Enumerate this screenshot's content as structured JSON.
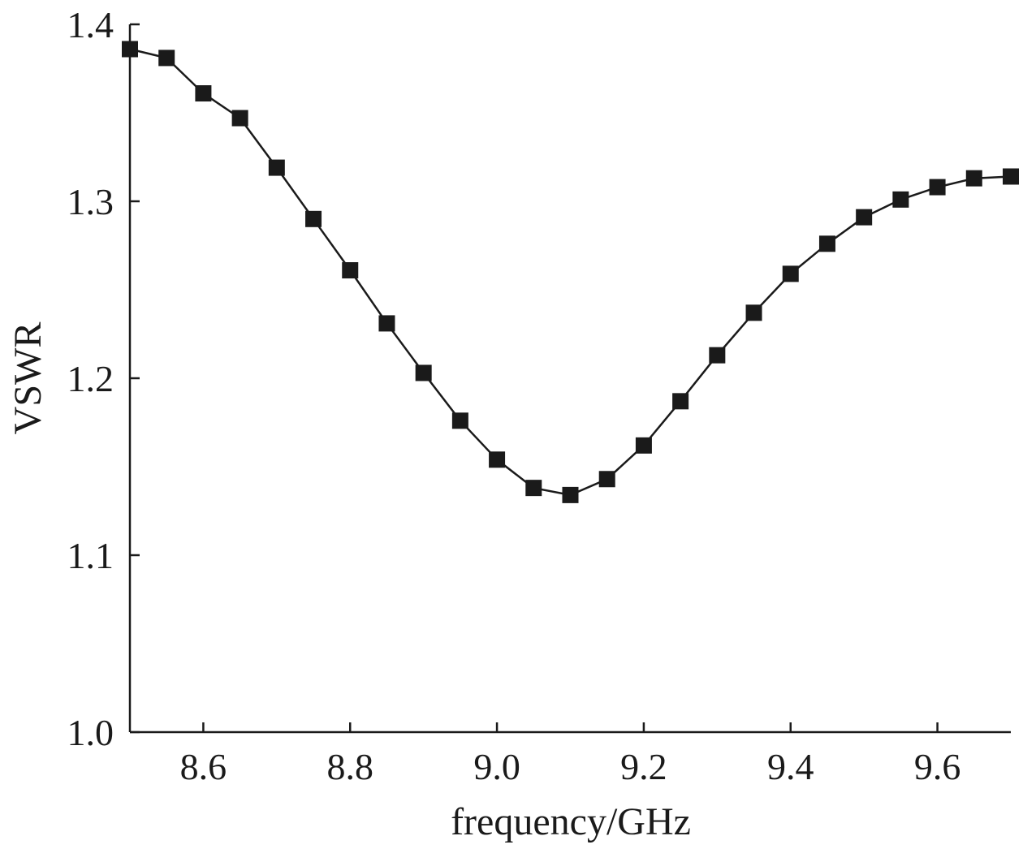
{
  "chart_data": {
    "type": "line",
    "title": "",
    "xlabel": "frequency/GHz",
    "ylabel": "VSWR",
    "xlim": [
      8.5,
      9.7
    ],
    "ylim": [
      1.0,
      1.4
    ],
    "x_ticks": [
      "8.6",
      "8.8",
      "9.0",
      "9.2",
      "9.4",
      "9.6"
    ],
    "y_ticks": [
      "1.0",
      "1.1",
      "1.2",
      "1.3",
      "1.4"
    ],
    "grid": false,
    "series": [
      {
        "marker": "square",
        "color": "#1a1a1a",
        "x": [
          8.5,
          8.55,
          8.6,
          8.65,
          8.7,
          8.75,
          8.8,
          8.85,
          8.9,
          8.95,
          9.0,
          9.05,
          9.1,
          9.15,
          9.2,
          9.25,
          9.3,
          9.35,
          9.4,
          9.45,
          9.5,
          9.55,
          9.6,
          9.65,
          9.7
        ],
        "y": [
          1.386,
          1.381,
          1.361,
          1.347,
          1.319,
          1.29,
          1.261,
          1.231,
          1.203,
          1.176,
          1.154,
          1.138,
          1.134,
          1.143,
          1.162,
          1.187,
          1.213,
          1.237,
          1.259,
          1.276,
          1.291,
          1.301,
          1.308,
          1.313,
          1.314
        ]
      }
    ]
  }
}
